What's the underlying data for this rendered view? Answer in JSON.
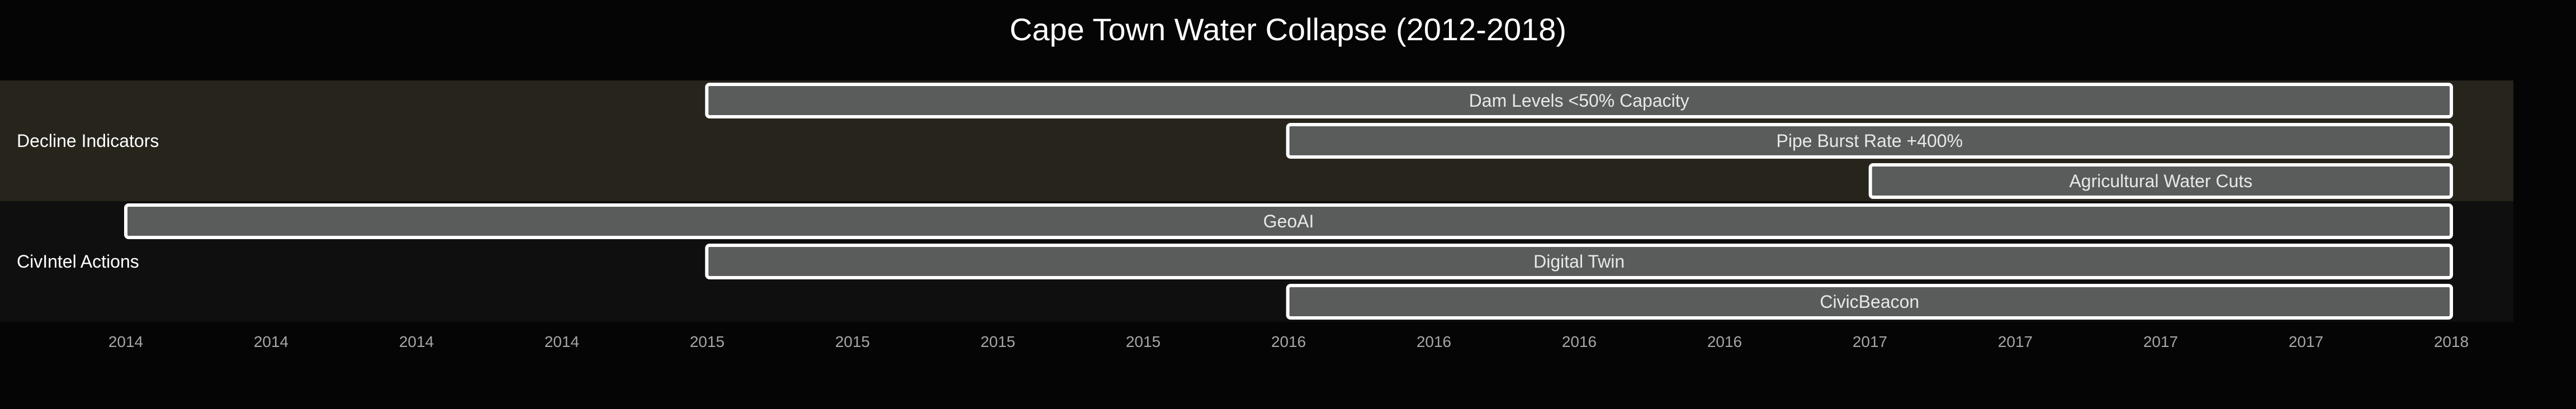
{
  "colors": {
    "background": "#050505",
    "section_band_1": "#27241c",
    "section_band_2": "#0f0f0f",
    "bar_fill": "#5a5c5c",
    "bar_stroke": "#ffffff",
    "text": "#ffffff",
    "tick_text": "#a6a6a6"
  },
  "chart_data": {
    "type": "gantt",
    "title": "Cape Town Water Collapse (2012-2018)",
    "grid": false,
    "x_range": [
      "2014-01-01",
      "2018-01-01"
    ],
    "x_tick_labels": [
      "2014",
      "2014",
      "2014",
      "2014",
      "2015",
      "2015",
      "2015",
      "2015",
      "2016",
      "2016",
      "2016",
      "2016",
      "2017",
      "2017",
      "2017",
      "2017",
      "2018"
    ],
    "sections": [
      {
        "name": "Decline Indicators",
        "tasks": [
          {
            "label": "Dam Levels <50% Capacity",
            "start": "2015-01-01",
            "end": "2018-01-01"
          },
          {
            "label": "Pipe Burst Rate +400%",
            "start": "2016-01-01",
            "end": "2018-01-01"
          },
          {
            "label": "Agricultural Water Cuts",
            "start": "2017-01-01",
            "end": "2018-01-01"
          }
        ]
      },
      {
        "name": "CivIntel Actions",
        "tasks": [
          {
            "label": "GeoAI",
            "start": "2014-01-01",
            "end": "2018-01-01"
          },
          {
            "label": "Digital Twin",
            "start": "2015-01-01",
            "end": "2018-01-01"
          },
          {
            "label": "CivicBeacon",
            "start": "2016-01-01",
            "end": "2018-01-01"
          }
        ]
      }
    ]
  }
}
